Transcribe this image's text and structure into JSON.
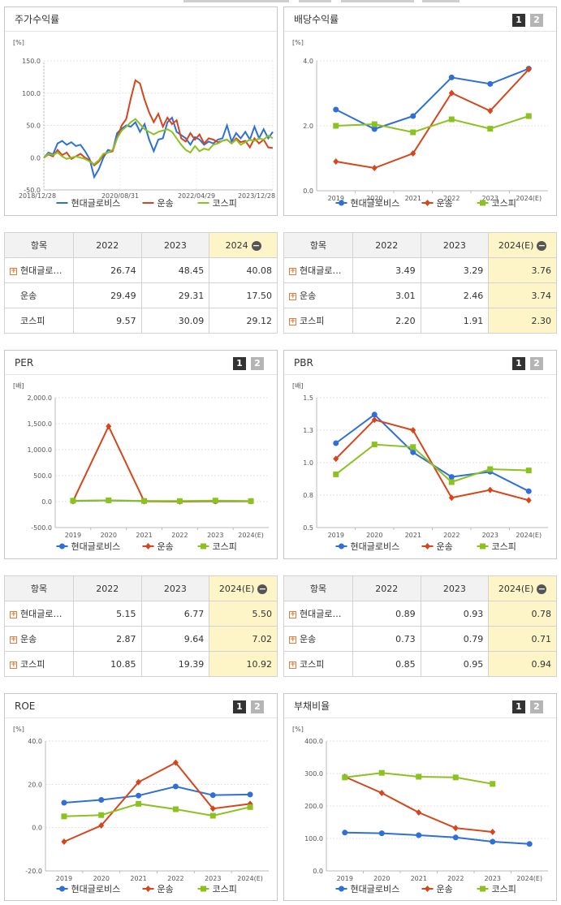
{
  "pager": {
    "p1": "1",
    "p2": "2"
  },
  "legend": [
    "현대글로비스",
    "운송",
    "코스피"
  ],
  "colors": {
    "company": "#2f6fd6",
    "industry": "#d6451b",
    "kospi": "#8cc220"
  },
  "stock_panel": {
    "title": "주가수익률",
    "unit": "[%]"
  },
  "div_panel": {
    "title": "배당수익률",
    "unit": "[%]"
  },
  "per_panel": {
    "title": "PER",
    "unit": "[배]"
  },
  "pbr_panel": {
    "title": "PBR",
    "unit": "[배]"
  },
  "roe_panel": {
    "title": "ROE",
    "unit": "[%]"
  },
  "debt_panel": {
    "title": "부채비율",
    "unit": "[%]"
  },
  "table1": {
    "headers": [
      "항목",
      "2022",
      "2023",
      "2024"
    ],
    "rows": [
      {
        "label": "현대글로…",
        "plus": true,
        "values": [
          "26.74",
          "48.45",
          "40.08"
        ]
      },
      {
        "label": "운송",
        "plus": false,
        "values": [
          "29.49",
          "29.31",
          "17.50"
        ]
      },
      {
        "label": "코스피",
        "plus": false,
        "values": [
          "9.57",
          "30.09",
          "29.12"
        ]
      }
    ]
  },
  "table2": {
    "headers": [
      "항목",
      "2022",
      "2023",
      "2024(E)"
    ],
    "rows": [
      {
        "label": "현대글로…",
        "plus": true,
        "values": [
          "3.49",
          "3.29",
          "3.76"
        ]
      },
      {
        "label": "운송",
        "plus": true,
        "values": [
          "3.01",
          "2.46",
          "3.74"
        ]
      },
      {
        "label": "코스피",
        "plus": true,
        "values": [
          "2.20",
          "1.91",
          "2.30"
        ]
      }
    ]
  },
  "table3": {
    "headers": [
      "항목",
      "2022",
      "2023",
      "2024(E)"
    ],
    "rows": [
      {
        "label": "현대글로…",
        "plus": true,
        "values": [
          "5.15",
          "6.77",
          "5.50"
        ]
      },
      {
        "label": "운송",
        "plus": true,
        "values": [
          "2.87",
          "9.64",
          "7.02"
        ]
      },
      {
        "label": "코스피",
        "plus": true,
        "values": [
          "10.85",
          "19.39",
          "10.92"
        ]
      }
    ]
  },
  "table4": {
    "headers": [
      "항목",
      "2022",
      "2023",
      "2024(E)"
    ],
    "rows": [
      {
        "label": "현대글로…",
        "plus": true,
        "values": [
          "0.89",
          "0.93",
          "0.78"
        ]
      },
      {
        "label": "운송",
        "plus": true,
        "values": [
          "0.73",
          "0.79",
          "0.71"
        ]
      },
      {
        "label": "코스피",
        "plus": true,
        "values": [
          "0.85",
          "0.95",
          "0.94"
        ]
      }
    ]
  },
  "chart_data": [
    {
      "id": "stock",
      "type": "line",
      "yticks": [
        "150.0",
        "100.0",
        "50.0",
        "0.0",
        "-50.0"
      ],
      "ylim": [
        -50,
        150
      ],
      "xticks": [
        "2018/12/28",
        "2020/08/31",
        "2022/04/29",
        "2023/12/28"
      ],
      "xlim": [
        0,
        1
      ],
      "series": [
        {
          "name": "현대글로비스",
          "x": [
            0,
            0.02,
            0.04,
            0.06,
            0.08,
            0.1,
            0.12,
            0.14,
            0.16,
            0.18,
            0.2,
            0.22,
            0.24,
            0.26,
            0.28,
            0.3,
            0.32,
            0.34,
            0.36,
            0.38,
            0.4,
            0.42,
            0.44,
            0.46,
            0.48,
            0.5,
            0.52,
            0.54,
            0.56,
            0.58,
            0.6,
            0.62,
            0.64,
            0.66,
            0.68,
            0.7,
            0.72,
            0.74,
            0.76,
            0.78,
            0.8,
            0.82,
            0.84,
            0.86,
            0.88,
            0.9,
            0.92,
            0.94,
            0.96,
            0.98,
            1.0
          ],
          "y": [
            0,
            8,
            5,
            22,
            26,
            20,
            24,
            18,
            20,
            10,
            -2,
            -30,
            -18,
            0,
            12,
            10,
            38,
            45,
            50,
            48,
            55,
            40,
            52,
            28,
            10,
            28,
            30,
            55,
            62,
            40,
            35,
            30,
            20,
            32,
            28,
            20,
            25,
            22,
            28,
            30,
            50,
            25,
            38,
            30,
            40,
            28,
            48,
            30,
            44,
            30,
            40
          ]
        },
        {
          "name": "운송",
          "x": [
            0,
            0.02,
            0.04,
            0.06,
            0.08,
            0.1,
            0.12,
            0.14,
            0.16,
            0.18,
            0.2,
            0.22,
            0.24,
            0.26,
            0.28,
            0.3,
            0.32,
            0.34,
            0.36,
            0.38,
            0.4,
            0.42,
            0.44,
            0.46,
            0.48,
            0.5,
            0.52,
            0.54,
            0.56,
            0.58,
            0.6,
            0.62,
            0.64,
            0.66,
            0.68,
            0.7,
            0.72,
            0.74,
            0.76,
            0.78,
            0.8,
            0.82,
            0.84,
            0.86,
            0.88,
            0.9,
            0.92,
            0.94,
            0.96,
            0.98,
            1.0
          ],
          "y": [
            0,
            5,
            2,
            12,
            4,
            8,
            -2,
            2,
            6,
            0,
            -4,
            -12,
            -6,
            4,
            8,
            10,
            30,
            50,
            60,
            92,
            120,
            115,
            90,
            70,
            55,
            68,
            48,
            62,
            52,
            58,
            30,
            25,
            38,
            28,
            36,
            22,
            30,
            28,
            24,
            26,
            28,
            22,
            30,
            24,
            26,
            16,
            30,
            22,
            28,
            16,
            15
          ]
        },
        {
          "name": "코스피",
          "x": [
            0,
            0.02,
            0.04,
            0.06,
            0.08,
            0.1,
            0.12,
            0.14,
            0.16,
            0.18,
            0.2,
            0.22,
            0.24,
            0.26,
            0.28,
            0.3,
            0.32,
            0.34,
            0.36,
            0.38,
            0.4,
            0.42,
            0.44,
            0.46,
            0.48,
            0.5,
            0.52,
            0.54,
            0.56,
            0.58,
            0.6,
            0.62,
            0.64,
            0.66,
            0.68,
            0.7,
            0.72,
            0.74,
            0.76,
            0.78,
            0.8,
            0.82,
            0.84,
            0.86,
            0.88,
            0.9,
            0.92,
            0.94,
            0.96,
            0.98,
            1.0
          ],
          "y": [
            0,
            6,
            4,
            8,
            2,
            -2,
            0,
            2,
            0,
            -2,
            -6,
            -10,
            -4,
            6,
            8,
            12,
            30,
            42,
            48,
            55,
            60,
            52,
            44,
            40,
            36,
            40,
            42,
            44,
            40,
            30,
            20,
            12,
            8,
            18,
            10,
            14,
            12,
            20,
            22,
            26,
            28,
            22,
            28,
            20,
            24,
            28,
            26,
            30,
            28,
            34,
            30
          ]
        }
      ]
    },
    {
      "id": "dividend",
      "type": "line",
      "categories": [
        "2019",
        "2020",
        "2021",
        "2022",
        "2023",
        "2024(E)"
      ],
      "yticks": [
        "4.0",
        "2.0",
        "0.0"
      ],
      "ylim": [
        0,
        4
      ],
      "series": [
        {
          "name": "현대글로비스",
          "values": [
            2.5,
            1.9,
            2.3,
            3.49,
            3.29,
            3.76
          ]
        },
        {
          "name": "운송",
          "values": [
            0.9,
            0.7,
            1.15,
            3.01,
            2.46,
            3.74
          ]
        },
        {
          "name": "코스피",
          "values": [
            2.0,
            2.05,
            1.8,
            2.2,
            1.91,
            2.3
          ]
        }
      ]
    },
    {
      "id": "per",
      "type": "line",
      "categories": [
        "2019",
        "2020",
        "2021",
        "2022",
        "2023",
        "2024(E)"
      ],
      "yticks": [
        "2,000.0",
        "1,500.0",
        "1,000.0",
        "500.0",
        "0.0",
        "-500.0"
      ],
      "ylim": [
        -500,
        2000
      ],
      "series": [
        {
          "name": "현대글로비스",
          "values": [
            12,
            22,
            10,
            5.15,
            6.77,
            5.5
          ]
        },
        {
          "name": "운송",
          "values": [
            8,
            1450,
            5,
            2.87,
            9.64,
            7.02
          ]
        },
        {
          "name": "코스피",
          "values": [
            18,
            25,
            13,
            10.85,
            19.39,
            10.92
          ]
        }
      ]
    },
    {
      "id": "pbr",
      "type": "line",
      "categories": [
        "2019",
        "2020",
        "2021",
        "2022",
        "2023",
        "2024(E)"
      ],
      "yticks": [
        "1.5",
        "1.3",
        "1.0",
        "0.8",
        "0.5"
      ],
      "ylim": [
        0.5,
        1.5
      ],
      "series": [
        {
          "name": "현대글로비스",
          "values": [
            1.15,
            1.37,
            1.08,
            0.89,
            0.93,
            0.78
          ]
        },
        {
          "name": "운송",
          "values": [
            1.03,
            1.33,
            1.25,
            0.73,
            0.79,
            0.71
          ]
        },
        {
          "name": "코스피",
          "values": [
            0.91,
            1.14,
            1.12,
            0.85,
            0.95,
            0.94
          ]
        }
      ]
    },
    {
      "id": "roe",
      "type": "line",
      "categories": [
        "2019",
        "2020",
        "2021",
        "2022",
        "2023",
        "2024(E)"
      ],
      "yticks": [
        "40.0",
        "20.0",
        "0.0",
        "-20.0"
      ],
      "ylim": [
        -20,
        40
      ],
      "series": [
        {
          "name": "현대글로비스",
          "values": [
            11.5,
            12.8,
            14.8,
            19.0,
            15.0,
            15.3
          ]
        },
        {
          "name": "운송",
          "values": [
            -6.5,
            1.0,
            21.0,
            30.0,
            8.8,
            11.0
          ]
        },
        {
          "name": "코스피",
          "values": [
            5.2,
            5.8,
            11.0,
            8.5,
            5.5,
            9.5
          ]
        }
      ]
    },
    {
      "id": "debt",
      "type": "line",
      "categories": [
        "2019",
        "2020",
        "2021",
        "2022",
        "2023",
        "2024(E)"
      ],
      "yticks": [
        "400.0",
        "300.0",
        "200.0",
        "100.0",
        "0.0"
      ],
      "ylim": [
        0,
        400
      ],
      "series": [
        {
          "name": "현대글로비스",
          "values": [
            118,
            116,
            110,
            103,
            90,
            83
          ]
        },
        {
          "name": "운송",
          "values": [
            290,
            240,
            180,
            132,
            120,
            null
          ]
        },
        {
          "name": "코스피",
          "values": [
            288,
            302,
            290,
            288,
            268,
            null
          ]
        }
      ]
    }
  ]
}
